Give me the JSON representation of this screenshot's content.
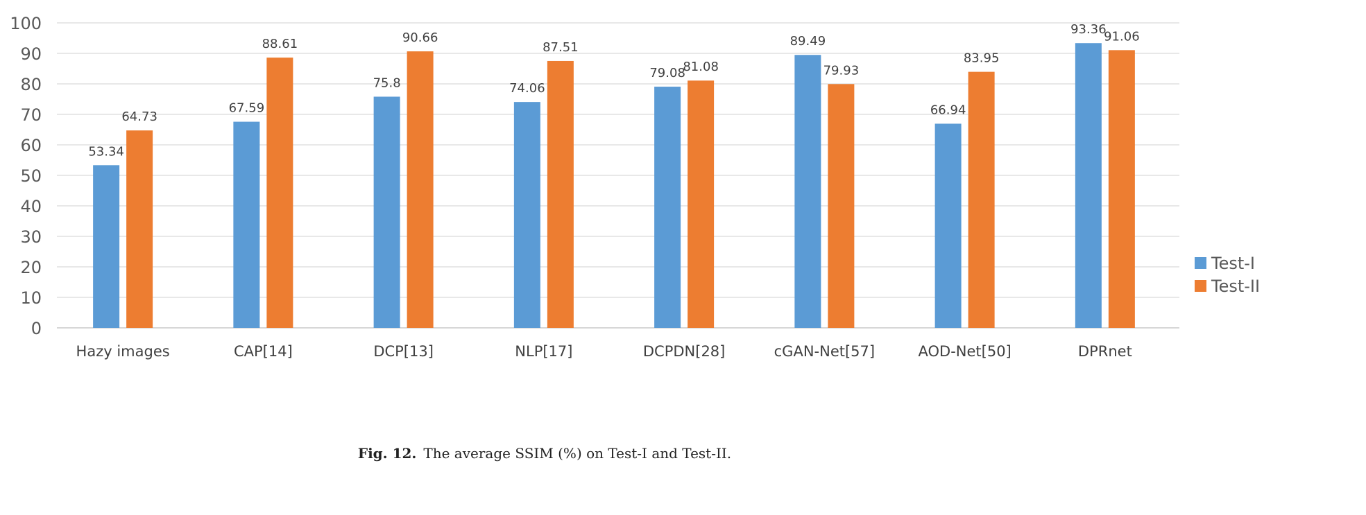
{
  "chart_data": {
    "type": "bar",
    "title": "",
    "xlabel": "",
    "ylabel": "",
    "ylim": [
      0,
      100
    ],
    "yticks": [
      0,
      10,
      20,
      30,
      40,
      50,
      60,
      70,
      80,
      90,
      100
    ],
    "grid": true,
    "legend_placement": "right",
    "categories": [
      "Hazy images",
      "CAP[14]",
      "DCP[13]",
      "NLP[17]",
      "DCPDN[28]",
      "cGAN-Net[57]",
      "AOD-Net[50]",
      "DPRnet"
    ],
    "series": [
      {
        "name": "Test-I",
        "color": "#5B9BD5",
        "values": [
          53.34,
          67.59,
          75.8,
          74.06,
          79.08,
          89.49,
          66.94,
          93.36
        ]
      },
      {
        "name": "Test-II",
        "color": "#ED7D31",
        "values": [
          64.73,
          88.61,
          90.66,
          87.51,
          81.08,
          79.93,
          83.95,
          91.06
        ]
      }
    ]
  },
  "caption": {
    "label": "Fig. 12.",
    "text": "The average SSIM (%) on Test-I and Test-II."
  }
}
